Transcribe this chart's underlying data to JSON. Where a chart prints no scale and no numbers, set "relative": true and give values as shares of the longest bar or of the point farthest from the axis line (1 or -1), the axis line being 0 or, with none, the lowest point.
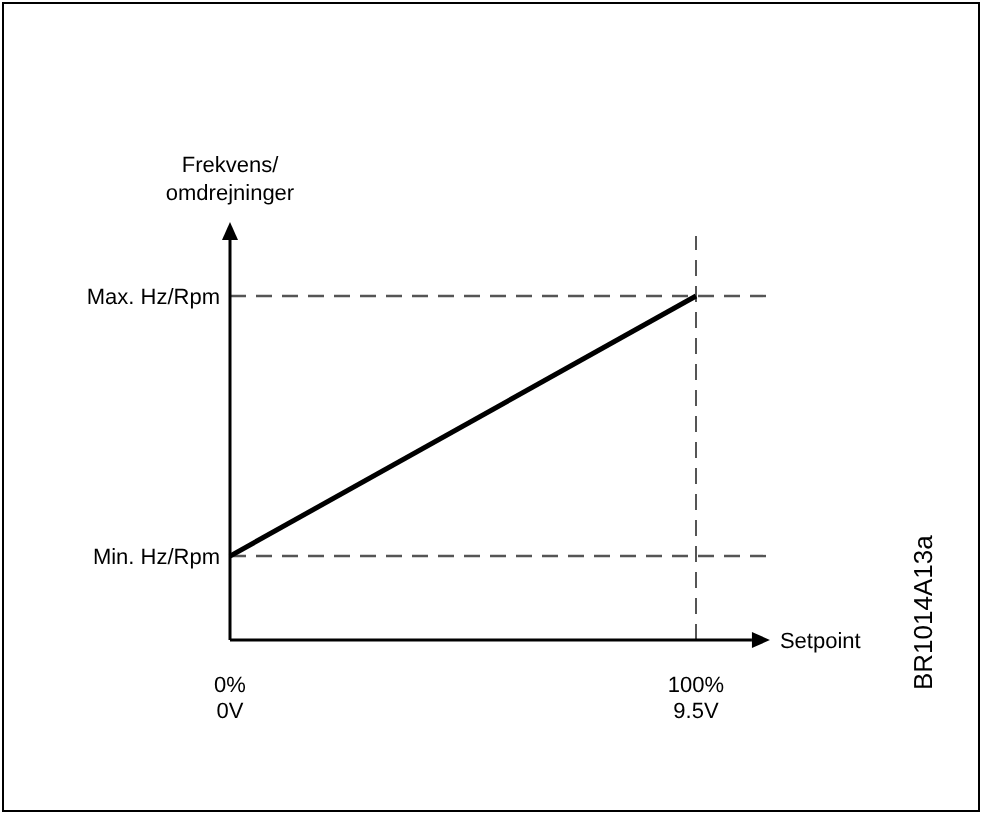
{
  "chart_data": {
    "type": "line",
    "relative": true,
    "xlabel": "Setpoint",
    "ylabel": "Frekvens/\nomdrejninger",
    "x": [
      0,
      100
    ],
    "values": [
      0.244,
      1
    ],
    "color": "#000000",
    "xlim": [
      0,
      112
    ],
    "xticks": [
      {
        "value": 0,
        "label": "0%"
      },
      {
        "value": 100,
        "label": "100%"
      }
    ],
    "x2lim": [
      0,
      10.64
    ],
    "x2ticks": [
      {
        "value": 0,
        "label": "0V"
      },
      {
        "value": 9.5,
        "label": "9.5V"
      }
    ],
    "ref_lines": [
      {
        "axis": "y",
        "value": 0.244,
        "label": "Min. Hz/Rpm",
        "color": "#555555",
        "line_style": "dashed"
      },
      {
        "axis": "y",
        "value": 1,
        "label": "Max. Hz/Rpm",
        "color": "#555555",
        "line_style": "dashed"
      },
      {
        "axis": "x",
        "value": 100,
        "color": "#555555",
        "line_style": "dashed"
      }
    ],
    "annotations": [
      "BR1014A13a"
    ]
  }
}
